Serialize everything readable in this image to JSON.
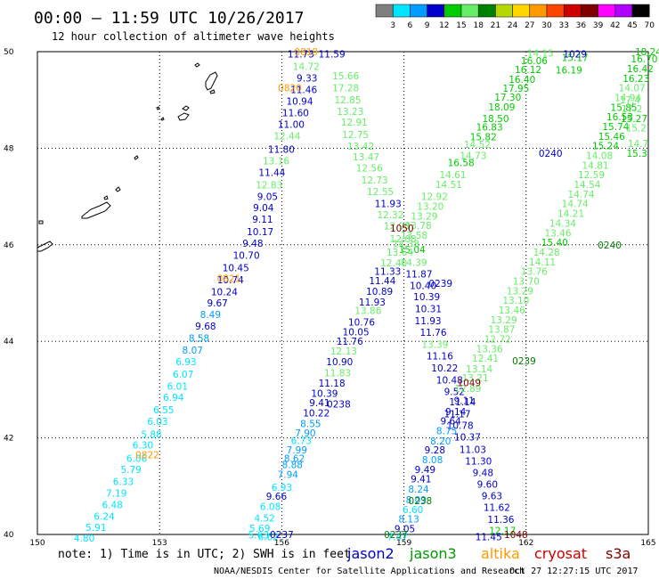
{
  "header": {
    "title": "00:00 – 11:59 UTC 10/26/2017",
    "subtitle": "12 hour collection of altimeter wave heights"
  },
  "colorbar": {
    "colors": [
      "#7f7f7f",
      "#00e5ff",
      "#009cff",
      "#0000cc",
      "#00cc00",
      "#66ee66",
      "#008000",
      "#b5d800",
      "#ffd700",
      "#ff9900",
      "#ff4400",
      "#cc0000",
      "#800000",
      "#ff00ff",
      "#b000ff",
      "#000000"
    ],
    "labels": [
      "3",
      "6",
      "9",
      "12",
      "15",
      "18",
      "21",
      "24",
      "27",
      "30",
      "33",
      "36",
      "39",
      "42",
      "45",
      "70",
      "(ft)"
    ]
  },
  "footer": {
    "note": "note: 1) Time is in UTC; 2) SWH is in feet",
    "credit": "NOAA/NESDIS Center for Satellite Applications and Research",
    "timestamp": "Oct 27 12:27:15 UTC 2017"
  },
  "legend": [
    {
      "name": "jason2",
      "color": "#0000cc"
    },
    {
      "name": "jason3",
      "color": "#009900"
    },
    {
      "name": "altika",
      "color": "#ff9900"
    },
    {
      "name": "cryosat",
      "color": "#cc0000"
    },
    {
      "name": "s3a",
      "color": "#800000"
    }
  ],
  "chart_data": {
    "type": "scatter",
    "xlim": [
      150,
      165
    ],
    "ylim": [
      40,
      50
    ],
    "grid": true,
    "x_ticks": [
      "150",
      "153",
      "156",
      "159",
      "162",
      "165"
    ],
    "y_ticks": [
      "40",
      "42",
      "44",
      "46",
      "48",
      "50"
    ],
    "palette": {
      "1": "#00e5ff",
      "2": "#009cff",
      "3": "#0000cc",
      "4": "#00cc00",
      "5": "#66ee66",
      "6": "#008000",
      "a": "#ff9900",
      "b": "#0000cc",
      "c": "#008000",
      "d": "#800000"
    },
    "points": [
      [
        156.47,
        49.95,
        "11.73",
        "3"
      ],
      [
        157.23,
        49.95,
        "11.59",
        "3"
      ],
      [
        156.6,
        49.7,
        "14.72",
        "5"
      ],
      [
        156.62,
        49.46,
        "9.33",
        "3"
      ],
      [
        156.54,
        49.22,
        "11.46",
        "3"
      ],
      [
        156.44,
        48.98,
        "10.94",
        "3"
      ],
      [
        156.34,
        48.74,
        "11.60",
        "3"
      ],
      [
        156.23,
        48.5,
        "11.00",
        "3"
      ],
      [
        156.13,
        48.26,
        "12.44",
        "5"
      ],
      [
        155.99,
        47.98,
        "11.80",
        "3"
      ],
      [
        155.86,
        47.74,
        "13.16",
        "5"
      ],
      [
        155.76,
        47.5,
        "11.44",
        "3"
      ],
      [
        155.69,
        47.24,
        "12.83",
        "5"
      ],
      [
        155.65,
        47.0,
        "9.05",
        "3"
      ],
      [
        155.55,
        46.77,
        "9.04",
        "3"
      ],
      [
        155.53,
        46.53,
        "9.11",
        "3"
      ],
      [
        155.47,
        46.27,
        "10.17",
        "3"
      ],
      [
        155.29,
        46.03,
        "9.48",
        "3"
      ],
      [
        155.13,
        45.78,
        "10.70",
        "3"
      ],
      [
        154.87,
        45.53,
        "10.45",
        "3"
      ],
      [
        154.74,
        45.28,
        "10.74",
        "3"
      ],
      [
        154.59,
        45.03,
        "10.24",
        "3"
      ],
      [
        154.42,
        44.8,
        "9.67",
        "3"
      ],
      [
        154.25,
        44.56,
        "8.49",
        "2"
      ],
      [
        154.13,
        44.32,
        "9.68",
        "3"
      ],
      [
        153.97,
        44.07,
        "8.58",
        "2"
      ],
      [
        153.81,
        43.82,
        "8.07",
        "2"
      ],
      [
        153.65,
        43.58,
        "6.93",
        "1"
      ],
      [
        153.58,
        43.32,
        "6.07",
        "1"
      ],
      [
        153.44,
        43.07,
        "6.01",
        "1"
      ],
      [
        153.34,
        42.84,
        "6.94",
        "1"
      ],
      [
        153.1,
        42.58,
        "6.55",
        "1"
      ],
      [
        152.95,
        42.34,
        "6.03",
        "1"
      ],
      [
        152.8,
        42.08,
        "5.88",
        "1"
      ],
      [
        152.59,
        41.85,
        "6.30",
        "1"
      ],
      [
        152.44,
        41.58,
        "6.06",
        "1"
      ],
      [
        152.3,
        41.35,
        "5.79",
        "1"
      ],
      [
        152.11,
        41.1,
        "6.33",
        "1"
      ],
      [
        151.94,
        40.86,
        "7.19",
        "1"
      ],
      [
        151.84,
        40.62,
        "6.48",
        "1"
      ],
      [
        151.64,
        40.38,
        "6.24",
        "1"
      ],
      [
        151.44,
        40.15,
        "5.91",
        "1"
      ],
      [
        151.15,
        39.93,
        "4.80",
        "1"
      ],
      [
        157.57,
        49.5,
        "15.66",
        "5"
      ],
      [
        157.57,
        49.25,
        "17.28",
        "5"
      ],
      [
        157.62,
        49.0,
        "12.85",
        "5"
      ],
      [
        157.68,
        48.76,
        "13.23",
        "5"
      ],
      [
        157.78,
        48.54,
        "12.91",
        "5"
      ],
      [
        157.81,
        48.28,
        "12.75",
        "5"
      ],
      [
        157.94,
        48.04,
        "13.42",
        "5"
      ],
      [
        158.07,
        47.82,
        "13.47",
        "5"
      ],
      [
        158.15,
        47.59,
        "12.56",
        "5"
      ],
      [
        158.28,
        47.34,
        "12.73",
        "5"
      ],
      [
        158.42,
        47.1,
        "12.55",
        "5"
      ],
      [
        158.61,
        46.85,
        "11.93",
        "3"
      ],
      [
        158.67,
        46.62,
        "12.32",
        "5"
      ],
      [
        158.83,
        46.39,
        "12.98",
        "5"
      ],
      [
        158.98,
        46.13,
        "12.88",
        "5"
      ],
      [
        159.2,
        45.9,
        "15.04",
        "4"
      ],
      [
        159.24,
        45.64,
        "14.39",
        "5"
      ],
      [
        159.37,
        45.4,
        "11.87",
        "3"
      ],
      [
        159.47,
        45.16,
        "10.40",
        "3"
      ],
      [
        159.56,
        44.93,
        "10.39",
        "3"
      ],
      [
        159.6,
        44.68,
        "10.31",
        "3"
      ],
      [
        159.59,
        44.43,
        "11.93",
        "3"
      ],
      [
        159.72,
        44.19,
        "11.76",
        "3"
      ],
      [
        159.76,
        43.94,
        "13.39",
        "5"
      ],
      [
        159.88,
        43.7,
        "11.16",
        "3"
      ],
      [
        160.0,
        43.45,
        "10.22",
        "3"
      ],
      [
        160.12,
        43.2,
        "10.48",
        "3"
      ],
      [
        160.24,
        42.96,
        "9.52",
        "3"
      ],
      [
        160.44,
        42.75,
        "11.14",
        "3"
      ],
      [
        160.31,
        42.5,
        "11.17",
        "3"
      ],
      [
        160.38,
        42.26,
        "10.78",
        "3"
      ],
      [
        160.56,
        42.02,
        "10.37",
        "3"
      ],
      [
        160.69,
        41.76,
        "11.03",
        "3"
      ],
      [
        160.83,
        41.52,
        "11.30",
        "3"
      ],
      [
        160.94,
        41.28,
        "9.48",
        "3"
      ],
      [
        161.05,
        41.04,
        "9.60",
        "3"
      ],
      [
        161.16,
        40.8,
        "9.63",
        "3"
      ],
      [
        161.28,
        40.56,
        "11.62",
        "3"
      ],
      [
        161.38,
        40.31,
        "11.36",
        "3"
      ],
      [
        161.42,
        40.08,
        "12.17",
        "4"
      ],
      [
        161.08,
        39.95,
        "11.45",
        "3"
      ],
      [
        155.67,
        39.95,
        "6.62",
        "1"
      ],
      [
        155.43,
        39.99,
        "5.63",
        "1"
      ],
      [
        155.46,
        40.13,
        "5.69",
        "1"
      ],
      [
        155.58,
        40.34,
        "4.52",
        "1"
      ],
      [
        155.72,
        40.58,
        "6.08",
        "1"
      ],
      [
        155.87,
        40.79,
        "9.66",
        "3"
      ],
      [
        156.0,
        40.98,
        "6.93",
        "1"
      ],
      [
        156.15,
        41.25,
        "7.94",
        "2"
      ],
      [
        156.26,
        41.45,
        "8.88",
        "2"
      ],
      [
        156.31,
        41.58,
        "8.62",
        "2"
      ],
      [
        156.37,
        41.75,
        "7.99",
        "2"
      ],
      [
        156.48,
        41.95,
        "6.73",
        "1"
      ],
      [
        156.58,
        42.1,
        "7.90",
        "2"
      ],
      [
        156.71,
        42.3,
        "8.55",
        "2"
      ],
      [
        156.85,
        42.52,
        "10.22",
        "3"
      ],
      [
        156.93,
        42.73,
        "9.41",
        "3"
      ],
      [
        157.05,
        42.92,
        "10.39",
        "3"
      ],
      [
        157.23,
        43.14,
        "11.18",
        "3"
      ],
      [
        157.37,
        43.35,
        "11.83",
        "5"
      ],
      [
        157.42,
        43.58,
        "10.90",
        "3"
      ],
      [
        157.52,
        43.8,
        "12.13",
        "5"
      ],
      [
        157.67,
        44.0,
        "11.76",
        "3"
      ],
      [
        157.82,
        44.2,
        "10.05",
        "3"
      ],
      [
        157.96,
        44.4,
        "10.76",
        "3"
      ],
      [
        158.12,
        44.64,
        "13.86",
        "5"
      ],
      [
        158.22,
        44.82,
        "11.93",
        "3"
      ],
      [
        158.4,
        45.04,
        "10.89",
        "3"
      ],
      [
        158.47,
        45.26,
        "11.44",
        "3"
      ],
      [
        158.6,
        45.45,
        "11.33",
        "3"
      ],
      [
        158.75,
        45.63,
        "12.40",
        "5"
      ],
      [
        158.9,
        45.85,
        "13.64",
        "5"
      ],
      [
        159.05,
        46.02,
        "14.38",
        "5"
      ],
      [
        159.25,
        46.2,
        "13.58",
        "5"
      ],
      [
        159.35,
        46.4,
        "13.78",
        "5"
      ],
      [
        159.5,
        46.6,
        "13.29",
        "5"
      ],
      [
        159.65,
        46.8,
        "13.20",
        "5"
      ],
      [
        159.75,
        47.0,
        "12.92",
        "5"
      ],
      [
        160.1,
        47.25,
        "14.51",
        "5"
      ],
      [
        160.2,
        47.45,
        "14.61",
        "5"
      ],
      [
        160.4,
        47.7,
        "16.58",
        "4"
      ],
      [
        160.7,
        47.85,
        "14.73",
        "5"
      ],
      [
        160.8,
        48.08,
        "14.52",
        "5"
      ],
      [
        160.95,
        48.24,
        "15.82",
        "4"
      ],
      [
        161.1,
        48.44,
        "16.83",
        "4"
      ],
      [
        161.25,
        48.62,
        "18.50",
        "4"
      ],
      [
        161.4,
        48.86,
        "18.09",
        "4"
      ],
      [
        161.55,
        49.06,
        "17.30",
        "4"
      ],
      [
        161.75,
        49.24,
        "17.95",
        "4"
      ],
      [
        161.9,
        49.43,
        "16.40",
        "4"
      ],
      [
        162.05,
        49.63,
        "16.12",
        "4"
      ],
      [
        162.2,
        49.82,
        "16.06",
        "4"
      ],
      [
        162.35,
        49.97,
        "14.15",
        "5"
      ],
      [
        158.84,
        39.95,
        "7.47",
        "1"
      ],
      [
        159.02,
        40.12,
        "9.05",
        "3"
      ],
      [
        159.12,
        40.32,
        "8.13",
        "2"
      ],
      [
        159.22,
        40.52,
        "6.60",
        "1"
      ],
      [
        159.3,
        40.72,
        "8.09",
        "2"
      ],
      [
        159.36,
        40.94,
        "8.24",
        "2"
      ],
      [
        159.42,
        41.15,
        "9.41",
        "3"
      ],
      [
        159.52,
        41.35,
        "9.49",
        "3"
      ],
      [
        159.7,
        41.55,
        "8.08",
        "2"
      ],
      [
        159.76,
        41.75,
        "9.28",
        "3"
      ],
      [
        159.9,
        41.94,
        "8.20",
        "2"
      ],
      [
        160.05,
        42.15,
        "8.75",
        "2"
      ],
      [
        160.15,
        42.35,
        "9.64",
        "3"
      ],
      [
        160.27,
        42.55,
        "9.14",
        "3"
      ],
      [
        160.48,
        42.78,
        "9.11",
        "3"
      ],
      [
        160.57,
        43.03,
        "12.89",
        "5"
      ],
      [
        160.75,
        43.25,
        "13.21",
        "5"
      ],
      [
        160.85,
        43.43,
        "13.14",
        "5"
      ],
      [
        161.0,
        43.65,
        "12.41",
        "5"
      ],
      [
        161.1,
        43.85,
        "13.36",
        "5"
      ],
      [
        161.3,
        44.05,
        "12.72",
        "5"
      ],
      [
        161.4,
        44.25,
        "13.87",
        "5"
      ],
      [
        161.45,
        44.45,
        "13.29",
        "5"
      ],
      [
        161.65,
        44.65,
        "13.46",
        "5"
      ],
      [
        161.75,
        44.85,
        "13.10",
        "5"
      ],
      [
        161.85,
        45.05,
        "13.29",
        "5"
      ],
      [
        162.0,
        45.25,
        "13.70",
        "5"
      ],
      [
        162.2,
        45.45,
        "13.76",
        "5"
      ],
      [
        162.4,
        45.65,
        "14.11",
        "5"
      ],
      [
        162.5,
        45.85,
        "14.28",
        "5"
      ],
      [
        162.7,
        46.05,
        "15.40",
        "4"
      ],
      [
        162.78,
        46.25,
        "13.46",
        "5"
      ],
      [
        162.9,
        46.45,
        "14.34",
        "5"
      ],
      [
        163.1,
        46.65,
        "14.21",
        "5"
      ],
      [
        163.2,
        46.85,
        "14.74",
        "5"
      ],
      [
        163.35,
        47.05,
        "14.74",
        "5"
      ],
      [
        163.5,
        47.25,
        "14.54",
        "5"
      ],
      [
        163.6,
        47.45,
        "12.59",
        "5"
      ],
      [
        163.7,
        47.65,
        "14.81",
        "5"
      ],
      [
        163.8,
        47.85,
        "14.08",
        "5"
      ],
      [
        163.95,
        48.05,
        "15.24",
        "4"
      ],
      [
        164.1,
        48.25,
        "15.46",
        "4"
      ],
      [
        164.2,
        48.45,
        "15.74",
        "4"
      ],
      [
        164.3,
        48.65,
        "16.53",
        "4"
      ],
      [
        164.4,
        48.85,
        "15.85",
        "4"
      ],
      [
        164.5,
        49.05,
        "14.94",
        "5"
      ],
      [
        164.6,
        49.25,
        "14.07",
        "5"
      ],
      [
        164.7,
        49.45,
        "16.23",
        "4"
      ],
      [
        164.8,
        49.65,
        "16.42",
        "4"
      ],
      [
        164.9,
        49.85,
        "16.70",
        "4"
      ],
      [
        165.0,
        50.0,
        "18.24",
        "4"
      ],
      [
        163.2,
        49.88,
        "15.17",
        "4"
      ],
      [
        163.05,
        49.62,
        "16.19",
        "4"
      ],
      [
        164.55,
        49.0,
        "17.4",
        "5"
      ],
      [
        164.6,
        48.82,
        "17.2",
        "5"
      ],
      [
        164.65,
        48.62,
        "15.27",
        "4"
      ],
      [
        164.7,
        48.42,
        "15.2",
        "5"
      ],
      [
        164.75,
        48.1,
        "14.7",
        "5"
      ],
      [
        164.72,
        47.9,
        "15.3",
        "4"
      ],
      [
        156.6,
        50.0,
        "0819",
        "a"
      ],
      [
        156.2,
        49.25,
        "0820",
        "a"
      ],
      [
        154.7,
        45.3,
        "0821",
        "a"
      ],
      [
        152.7,
        41.65,
        "0822",
        "a"
      ],
      [
        158.95,
        46.35,
        "1050",
        "d"
      ],
      [
        163.2,
        49.95,
        "1029",
        "b"
      ],
      [
        162.6,
        47.9,
        "0240",
        "b"
      ],
      [
        164.05,
        46.0,
        "0240",
        "c"
      ],
      [
        159.9,
        45.2,
        "0239",
        "b"
      ],
      [
        157.4,
        42.7,
        "0238",
        "b"
      ],
      [
        161.95,
        43.6,
        "0239",
        "c"
      ],
      [
        160.6,
        43.15,
        "1049",
        "d"
      ],
      [
        159.4,
        40.7,
        "0238",
        "c"
      ],
      [
        156.0,
        40.0,
        "0237",
        "b"
      ],
      [
        158.8,
        40.0,
        "0237",
        "c"
      ],
      [
        161.75,
        40.0,
        "1048",
        "d"
      ]
    ]
  }
}
